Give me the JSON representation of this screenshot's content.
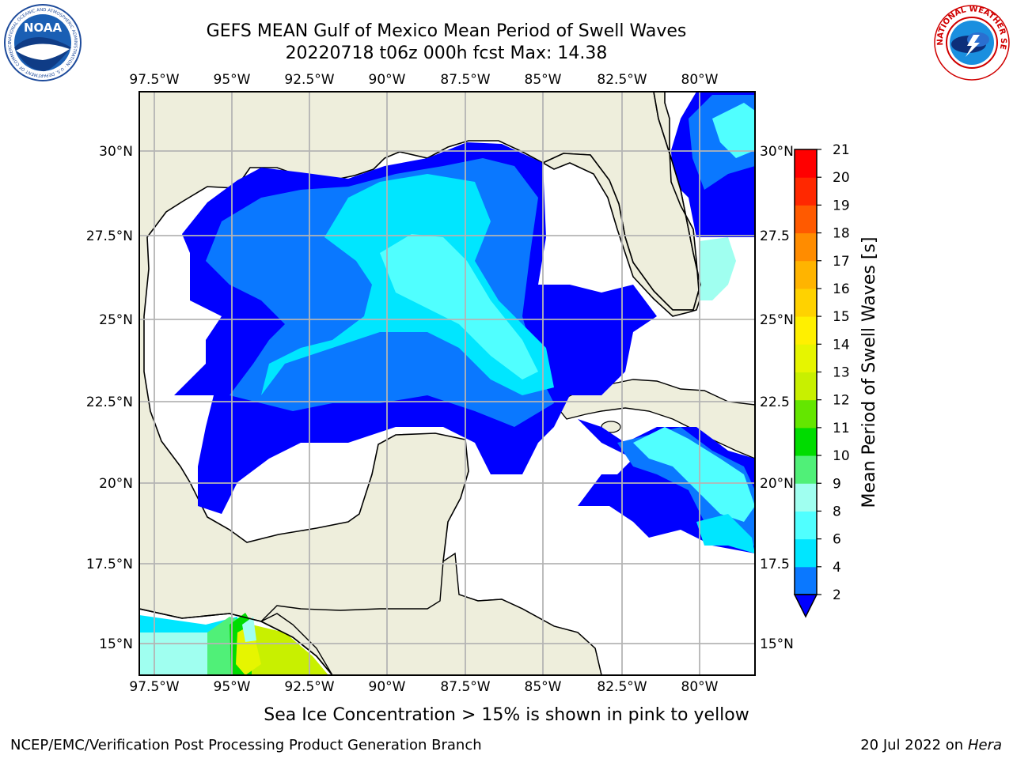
{
  "header": {
    "title_line1": "GEFS MEAN Gulf of Mexico Mean Period of Swell Waves",
    "title_line2": "20220718 t06z 000h fcst   Max: 14.38"
  },
  "logos": {
    "noaa_text": "NOAA",
    "noaa_ring_text": "NATIONAL OCEANIC AND ATMOSPHERIC ADMINISTRATION · U.S. DEPARTMENT OF COMMERCE",
    "nws_ring_text": "NATIONAL WEATHER SERVICE"
  },
  "map": {
    "lon_labels": [
      "97.5°W",
      "95°W",
      "92.5°W",
      "90°W",
      "87.5°W",
      "85°W",
      "82.5°W",
      "80°W"
    ],
    "lat_labels_left": [
      "30°N",
      "27.5°N",
      "25°N",
      "22.5°N",
      "20°N",
      "17.5°N",
      "15°N"
    ],
    "lat_labels_right": [
      "30°N",
      "27.5",
      "25°N",
      "22.5",
      "20°N",
      "17.5",
      "15°N"
    ],
    "colors": {
      "land": "#eeeedc",
      "ocean": "#ffffff",
      "grid": "#b4b4b4",
      "coast": "#000000"
    }
  },
  "colorbar": {
    "label": "Mean Period of Swell Waves [s]",
    "ticks": [
      "2",
      "4",
      "6",
      "8",
      "9",
      "10",
      "11",
      "12",
      "13",
      "14",
      "15",
      "16",
      "17",
      "18",
      "19",
      "20",
      "21"
    ],
    "colors": [
      "#0000ff",
      "#0a78ff",
      "#00e6ff",
      "#50ffff",
      "#a0fff0",
      "#50f078",
      "#00dc00",
      "#64e600",
      "#c8f000",
      "#e6f500",
      "#fff000",
      "#ffd200",
      "#ffb400",
      "#ff8c00",
      "#ff5a00",
      "#ff2800",
      "#ff0000"
    ]
  },
  "note": "Sea Ice Concentration > 15% is shown in pink to yellow",
  "footer": {
    "left": "NCEP/EMC/Verification Post Processing Product Generation Branch",
    "right_date": "20 Jul 2022 on ",
    "right_host": "Hera"
  }
}
